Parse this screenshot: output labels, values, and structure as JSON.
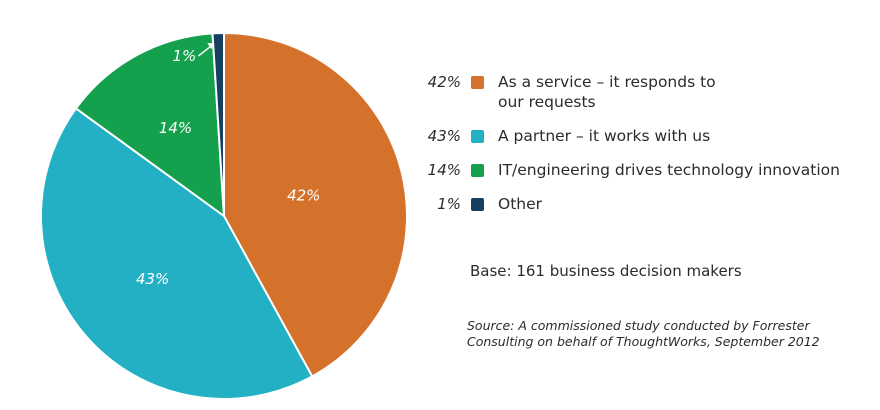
{
  "chart_data": {
    "type": "pie",
    "slices": [
      {
        "label": "As a service – it responds to our requests",
        "value": 42,
        "display": "42%",
        "color": "#d4722c"
      },
      {
        "label": "A partner – it works with us",
        "value": 43,
        "display": "43%",
        "color": "#23b0c4"
      },
      {
        "label": "IT/engineering drives technology innovation",
        "value": 14,
        "display": "14%",
        "color": "#14a04d"
      },
      {
        "label": "Other",
        "value": 1,
        "display": "1%",
        "color": "#163f60"
      }
    ],
    "legend_position": "right",
    "base": "Base: 161 business decision makers",
    "source": "Source: A commissioned study conducted by Forrester Consulting on behalf of ThoughtWorks, September 2012"
  }
}
